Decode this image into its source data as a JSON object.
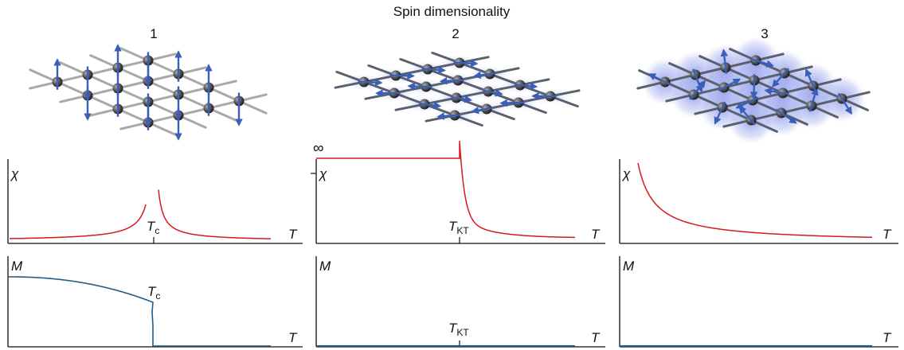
{
  "figure": {
    "title": "Spin dimensionality",
    "columns": [
      {
        "header": "1",
        "chi_plot": {
          "ylabel": "χ",
          "xlabel": "T",
          "tick_label": "T",
          "tick_sub": "c",
          "curve": "divergent-peak"
        },
        "m_plot": {
          "ylabel": "M",
          "xlabel": "T",
          "tick_label": "T",
          "tick_sub": "c",
          "curve": "order-parameter"
        }
      },
      {
        "header": "2",
        "chi_plot": {
          "ylabel": "χ",
          "xlabel": "T",
          "infinity_label": "∞",
          "tick_label": "T",
          "tick_sub": "KT",
          "curve": "infinite-below-TKT"
        },
        "m_plot": {
          "ylabel": "M",
          "xlabel": "T",
          "tick_label": "T",
          "tick_sub": "KT",
          "curve": "zero"
        }
      },
      {
        "header": "3",
        "chi_plot": {
          "ylabel": "χ",
          "xlabel": "T",
          "curve": "decay"
        },
        "m_plot": {
          "ylabel": "M",
          "xlabel": "T",
          "curve": "zero"
        }
      }
    ],
    "colors": {
      "chi_curve": "#d7191c",
      "m_curve": "#1f5c8a",
      "spin_arrow": "#3a5fb8",
      "spin_cloud": "#7f8fe0",
      "atom": "#555555",
      "lattice_rod": "#9a9a9a"
    }
  }
}
